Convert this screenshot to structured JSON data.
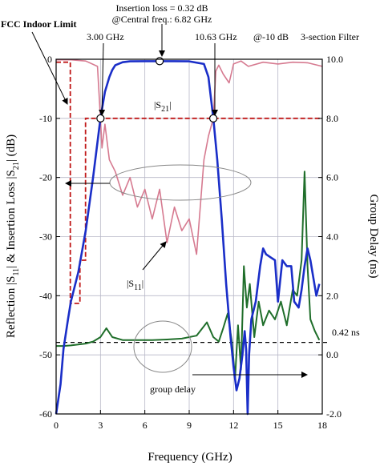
{
  "chart_data": {
    "type": "line",
    "xlabel": "Frequency (GHz)",
    "ylabel_left": "Reflection |S11| & Insertion Loss |S21| (dB)",
    "ylabel_left_parts": [
      "Reflection |S",
      "11",
      "| & Insertion Loss |S",
      "21",
      "| (dB)"
    ],
    "ylabel_right": "Group Delay (ns)",
    "xlim": [
      0,
      18
    ],
    "ylim_left": [
      -60,
      0
    ],
    "ylim_right": [
      -2.0,
      10.0
    ],
    "x_ticks": [
      0,
      3,
      6,
      9,
      12,
      15,
      18
    ],
    "y_ticks_left": [
      0,
      -10,
      -20,
      -30,
      -40,
      -50,
      -60
    ],
    "y_ticks_right": [
      "10.0",
      "8.0",
      "6.0",
      "4.0",
      "2.0",
      "0.0",
      "-2.0"
    ],
    "grid": true,
    "colors": {
      "s21": "#1a2ec8",
      "s11": "#d67a90",
      "group_delay": "#1f6e2a",
      "fcc": "#c01818",
      "text_red": "#c01818"
    },
    "series": [
      {
        "key": "s21",
        "x": [
          0.0,
          0.3,
          0.5,
          0.8,
          1.0,
          1.5,
          2.0,
          2.5,
          3.0,
          3.3,
          3.6,
          3.8,
          4.0,
          4.5,
          5.0,
          6.0,
          7.0,
          8.0,
          9.0,
          10.0,
          10.3,
          10.63,
          10.9,
          11.2,
          11.5,
          11.8,
          12.0,
          12.2,
          12.4,
          12.6,
          12.75,
          12.85,
          12.95,
          13.05,
          13.2,
          13.5,
          13.8,
          14.0,
          14.2,
          14.5,
          14.8,
          15.0,
          15.3,
          15.6,
          15.9,
          16.1,
          16.4,
          16.6,
          16.8,
          17.0,
          17.2,
          17.4,
          17.6,
          17.8
        ],
        "y": [
          -60.0,
          -55.0,
          -49.0,
          -44.0,
          -41.0,
          -36.0,
          -29.0,
          -20.0,
          -10.0,
          -5.5,
          -3.0,
          -1.8,
          -1.0,
          -0.5,
          -0.35,
          -0.32,
          -0.32,
          -0.32,
          -0.35,
          -0.8,
          -3.0,
          -10.0,
          -17.0,
          -27.0,
          -38.0,
          -47.0,
          -52.0,
          -56.0,
          -54.0,
          -50.0,
          -46.0,
          -49.0,
          -60.0,
          -50.0,
          -44.0,
          -41.0,
          -35.0,
          -32.0,
          -33.0,
          -33.5,
          -34.0,
          -41.0,
          -34.0,
          -35.0,
          -35.0,
          -41.0,
          -42.0,
          -39.0,
          -35.0,
          -32.0,
          -34.0,
          -37.0,
          -40.0,
          -38.0
        ]
      },
      {
        "key": "s11",
        "x": [
          0.0,
          1.0,
          2.0,
          2.8,
          3.0,
          3.1,
          3.3,
          3.6,
          4.0,
          4.5,
          5.0,
          5.5,
          6.0,
          6.5,
          7.0,
          7.5,
          8.0,
          8.5,
          9.0,
          9.5,
          10.0,
          10.3,
          10.63,
          10.8,
          11.0,
          11.3,
          11.7,
          12.0,
          12.5,
          13.0,
          14.0,
          15.0,
          16.0,
          17.0,
          18.0
        ],
        "y": [
          -0.1,
          -0.1,
          -0.3,
          -1.2,
          -10.0,
          -15.0,
          -11.0,
          -17.0,
          -19.0,
          -23.0,
          -20.0,
          -25.0,
          -22.0,
          -27.0,
          -22.0,
          -31.0,
          -25.0,
          -29.0,
          -27.0,
          -33.0,
          -17.0,
          -13.0,
          -10.0,
          -2.0,
          -1.0,
          -2.5,
          -4.0,
          -0.8,
          -0.3,
          -1.2,
          -0.5,
          -0.8,
          -0.5,
          -0.6,
          -1.2
        ]
      },
      {
        "key": "group_delay",
        "x": [
          0.0,
          0.5,
          1.0,
          1.5,
          2.0,
          2.5,
          3.0,
          3.4,
          3.8,
          4.5,
          5.5,
          6.5,
          7.5,
          8.5,
          9.5,
          10.2,
          10.63,
          11.0,
          11.3,
          11.6,
          11.9,
          12.1,
          12.3,
          12.5,
          12.7,
          12.9,
          13.1,
          13.4,
          13.7,
          14.0,
          14.4,
          14.8,
          15.2,
          15.6,
          16.0,
          16.3,
          16.6,
          16.8,
          17.0,
          17.2,
          17.5,
          17.8
        ],
        "y": [
          0.3,
          0.3,
          0.32,
          0.35,
          0.38,
          0.45,
          0.6,
          0.9,
          0.6,
          0.5,
          0.5,
          0.5,
          0.52,
          0.55,
          0.65,
          1.1,
          0.6,
          0.45,
          0.9,
          1.4,
          0.4,
          -0.8,
          1.0,
          -0.5,
          3.0,
          1.6,
          2.4,
          0.6,
          1.8,
          1.0,
          1.5,
          1.2,
          1.8,
          1.0,
          2.2,
          2.0,
          3.2,
          6.2,
          3.0,
          1.2,
          0.8,
          0.5
        ]
      },
      {
        "key": "fcc",
        "x": [
          0.0,
          0.96,
          0.96,
          1.61,
          1.61,
          1.99,
          1.99,
          3.1,
          3.1,
          10.6,
          10.6,
          18.0
        ],
        "y": [
          -34.0,
          -34.0,
          -34.0,
          -34.0,
          -34.0,
          -34.0,
          -0.5,
          -0.5,
          -0.5,
          -0.5,
          -10.0,
          -10.0
        ],
        "xs": [
          0.0,
          0.96,
          0.96,
          1.61,
          1.61,
          1.99,
          1.99,
          3.1,
          3.1,
          10.6,
          10.6,
          18.0
        ]
      }
    ],
    "fcc_limit": {
      "x": [
        0.0,
        0.96,
        0.96,
        1.61,
        1.61,
        1.99,
        1.99,
        3.1,
        3.1,
        10.6,
        10.6,
        18.0
      ],
      "y": [
        -34.0,
        -34.0,
        -34.0,
        -34.0,
        -34.0,
        -34.0,
        -41.3,
        -41.3,
        -10.0,
        -10.0,
        -10.0,
        -10.0
      ]
    },
    "fcc_limit_plot": {
      "x": [
        0.0,
        0.96,
        0.96,
        1.61,
        1.61,
        1.99,
        1.99,
        3.1,
        3.1,
        10.6,
        10.6,
        18.0
      ],
      "y": [
        -0.5,
        -0.5,
        -41.3,
        -41.3,
        -34.0,
        -34.0,
        -10.0,
        -10.0,
        -10.0,
        -10.0,
        -10.0,
        -10.0
      ]
    },
    "group_delay_reference_ns": 0.42,
    "markers": [
      {
        "x": 3.0,
        "y": -10.0
      },
      {
        "x": 7.0,
        "y": -0.32
      },
      {
        "x": 10.63,
        "y": -10.0
      }
    ],
    "annotations": {
      "insertion_loss_line1": "Insertion loss = 0.32 dB",
      "insertion_loss_line2": "@Central freq.: 6.82 GHz",
      "fcc": "FCC Indoor Limit",
      "f_low": "3.00 GHz",
      "f_high": "10.63 GHz",
      "at_10db": "@-10 dB",
      "filter": "3-section Filter",
      "s21_label": "|S21|",
      "s21_parts": [
        "|S",
        "21",
        "|"
      ],
      "s11_label": "|S11|",
      "s11_parts": [
        "|S",
        "11",
        "|"
      ],
      "delay_value": "0.42 ns",
      "group_delay": "group delay"
    }
  }
}
